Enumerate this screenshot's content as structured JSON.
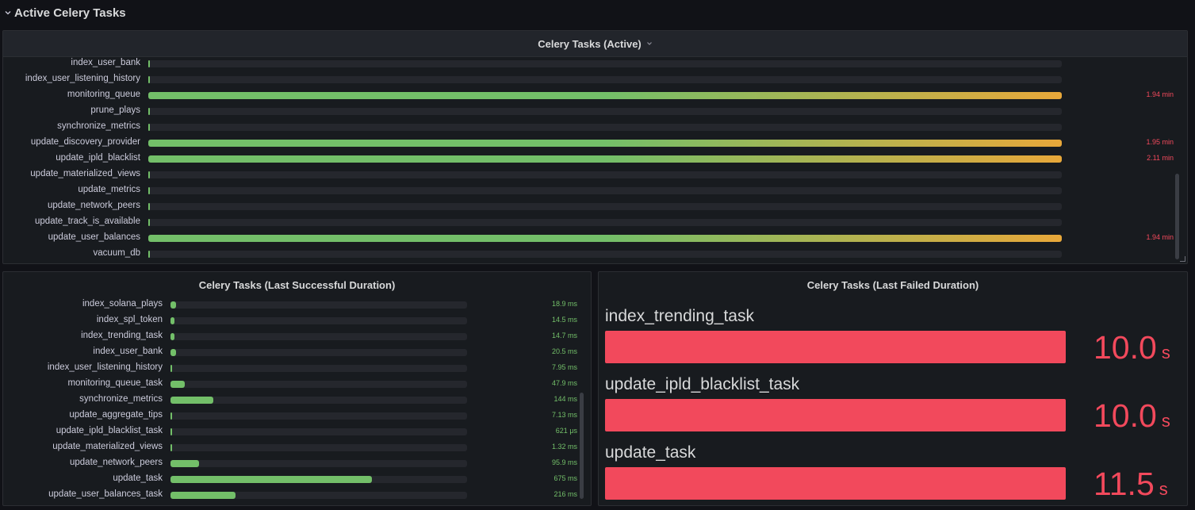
{
  "row": {
    "title": "Active Celery Tasks",
    "icon": "chevron-down-icon"
  },
  "colors": {
    "green": "#73bf69",
    "orange": "#e8a83a",
    "red": "#f2495c",
    "track": "#25272d"
  },
  "active_panel": {
    "title": "Celery Tasks (Active)",
    "items": [
      {
        "label": "index_user_bank",
        "fraction": 0.0,
        "value": ""
      },
      {
        "label": "index_user_listening_history",
        "fraction": 0.0,
        "value": ""
      },
      {
        "label": "monitoring_queue",
        "fraction": 1.0,
        "value": "1.94 min"
      },
      {
        "label": "prune_plays",
        "fraction": 0.0,
        "value": ""
      },
      {
        "label": "synchronize_metrics",
        "fraction": 0.0,
        "value": ""
      },
      {
        "label": "update_discovery_provider",
        "fraction": 1.0,
        "value": "1.95 min"
      },
      {
        "label": "update_ipld_blacklist",
        "fraction": 1.0,
        "value": "2.11 min"
      },
      {
        "label": "update_materialized_views",
        "fraction": 0.0,
        "value": ""
      },
      {
        "label": "update_metrics",
        "fraction": 0.0,
        "value": ""
      },
      {
        "label": "update_network_peers",
        "fraction": 0.0,
        "value": ""
      },
      {
        "label": "update_track_is_available",
        "fraction": 0.0,
        "value": ""
      },
      {
        "label": "update_user_balances",
        "fraction": 1.0,
        "value": "1.94 min"
      },
      {
        "label": "vacuum_db",
        "fraction": 0.0,
        "value": ""
      }
    ]
  },
  "success_panel": {
    "title": "Celery Tasks (Last Successful Duration)",
    "items": [
      {
        "label": "index_solana_plays",
        "fraction": 0.018,
        "value": "18.9 ms"
      },
      {
        "label": "index_spl_token",
        "fraction": 0.014,
        "value": "14.5 ms"
      },
      {
        "label": "index_trending_task",
        "fraction": 0.014,
        "value": "14.7 ms"
      },
      {
        "label": "index_user_bank",
        "fraction": 0.018,
        "value": "20.5 ms"
      },
      {
        "label": "index_user_listening_history",
        "fraction": 0.006,
        "value": "7.95 ms"
      },
      {
        "label": "monitoring_queue_task",
        "fraction": 0.047,
        "value": "47.9 ms"
      },
      {
        "label": "synchronize_metrics",
        "fraction": 0.145,
        "value": "144 ms"
      },
      {
        "label": "update_aggregate_tips",
        "fraction": 0.006,
        "value": "7.13 ms"
      },
      {
        "label": "update_ipld_blacklist_task",
        "fraction": 0.001,
        "value": "621 μs"
      },
      {
        "label": "update_materialized_views",
        "fraction": 0.002,
        "value": "1.32 ms"
      },
      {
        "label": "update_network_peers",
        "fraction": 0.097,
        "value": "95.9 ms"
      },
      {
        "label": "update_task",
        "fraction": 0.68,
        "value": "675 ms"
      },
      {
        "label": "update_user_balances_task",
        "fraction": 0.218,
        "value": "216 ms"
      }
    ]
  },
  "failed_panel": {
    "title": "Celery Tasks (Last Failed Duration)",
    "items": [
      {
        "label": "index_trending_task",
        "number": "10.0",
        "unit": "s",
        "fraction": 1.0
      },
      {
        "label": "update_ipld_blacklist_task",
        "number": "10.0",
        "unit": "s",
        "fraction": 1.0
      },
      {
        "label": "update_task",
        "number": "11.5",
        "unit": "s",
        "fraction": 1.0
      }
    ]
  }
}
